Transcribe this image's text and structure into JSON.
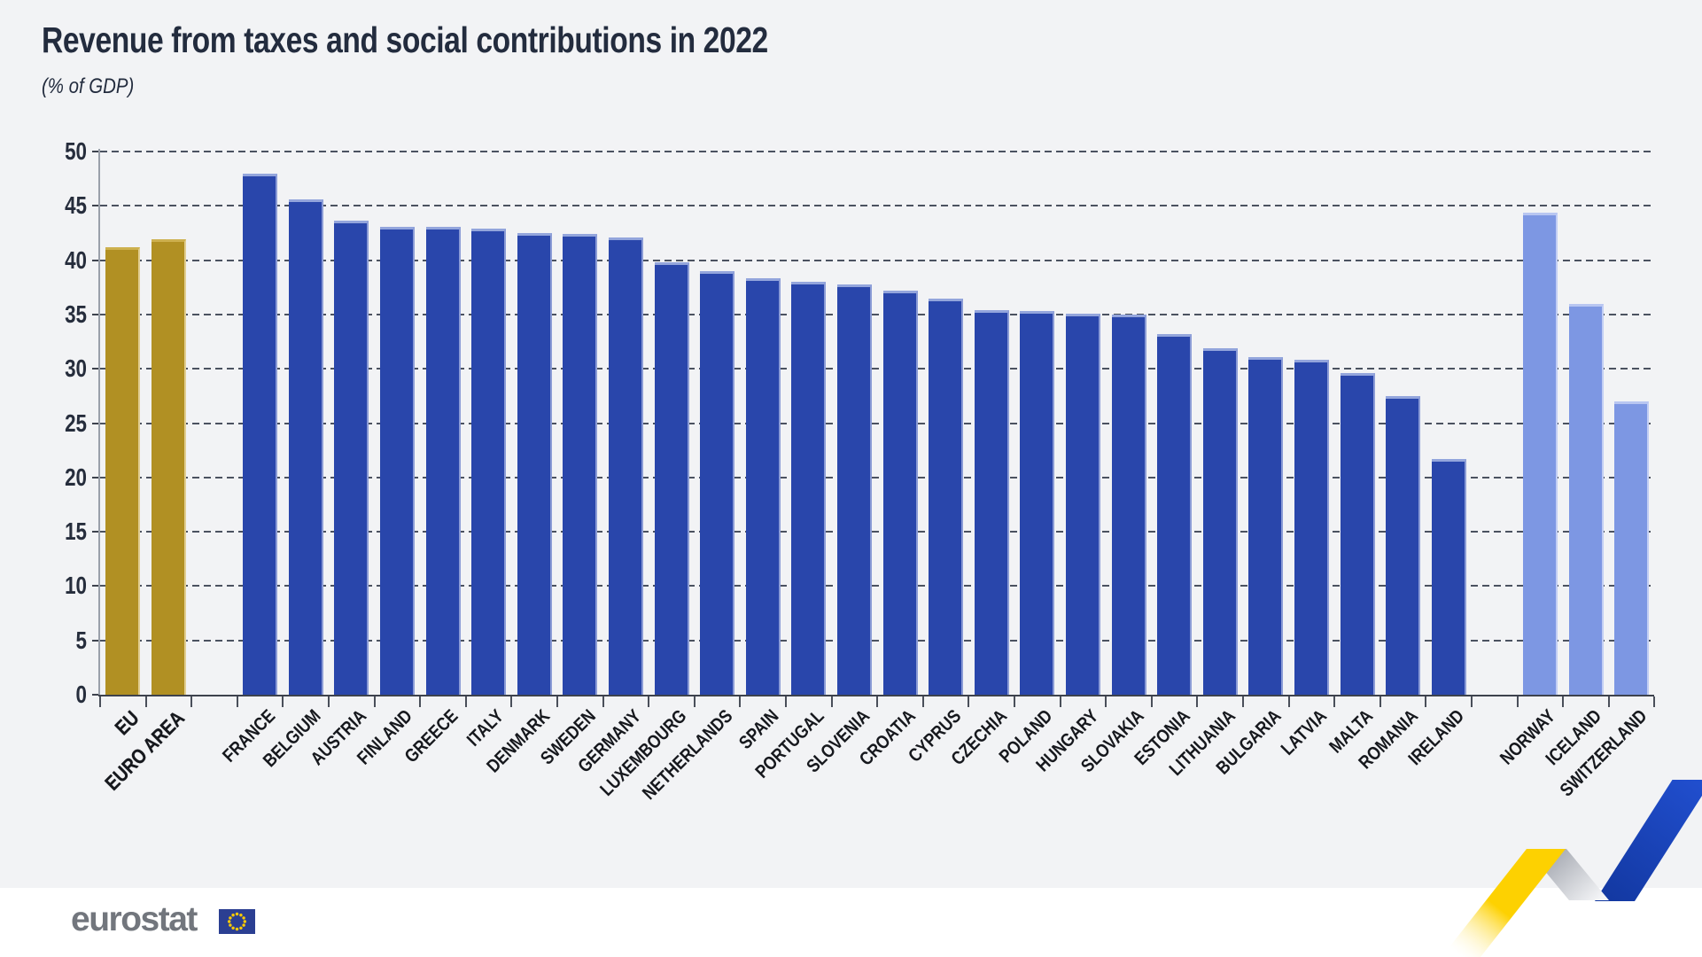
{
  "title": "Revenue from taxes and social contributions in 2022",
  "subtitle": "(% of GDP)",
  "logo": {
    "text": "eurostat"
  },
  "colors": {
    "background": "#f2f3f5",
    "footer": "#ffffff",
    "title_text": "#232c3e",
    "gridline": "#4b5260",
    "axis_line": "#3d424d",
    "eu_aggregate_bar": "#b19023",
    "eu_member_bar": "#2946ab",
    "efta_bar": "#7d97e3",
    "logo_gray": "#72767d",
    "flag_blue": "#2b3f92",
    "flag_star_yellow": "#ffcc00",
    "ribbon_yellow": "#fdd101",
    "ribbon_blue": "#1c4ed8",
    "ribbon_gray": "#9fa3ac"
  },
  "chart_data": {
    "type": "bar",
    "title": "Revenue from taxes and social contributions in 2022",
    "subtitle": "(% of GDP)",
    "ylabel": "% of GDP",
    "ylim": [
      0,
      50
    ],
    "y_ticks": [
      0,
      5,
      10,
      15,
      20,
      25,
      30,
      35,
      40,
      45,
      50
    ],
    "grid": "dashed horizontal",
    "legend": "none",
    "gaps_after": [
      "EURO AREA",
      "IRELAND"
    ],
    "groups": {
      "eu_aggregate": {
        "fill": "#b19023",
        "cap": "#cdb04e",
        "edge": "rgba(250,240,205,0.65)"
      },
      "eu_member": {
        "fill": "#2946ab",
        "cap": "#93a5dc",
        "edge": "rgba(220,228,250,0.55)"
      },
      "efta": {
        "fill": "#7d97e3",
        "cap": "#b8c6f1",
        "edge": "rgba(240,244,255,0.6)"
      }
    },
    "series": [
      {
        "label": "EU",
        "value": 41.2,
        "group": "eu_aggregate"
      },
      {
        "label": "EURO AREA",
        "value": 41.9,
        "group": "eu_aggregate"
      },
      {
        "label": "FRANCE",
        "value": 48.0,
        "group": "eu_member"
      },
      {
        "label": "BELGIUM",
        "value": 45.6,
        "group": "eu_member"
      },
      {
        "label": "AUSTRIA",
        "value": 43.6,
        "group": "eu_member"
      },
      {
        "label": "FINLAND",
        "value": 43.1,
        "group": "eu_member"
      },
      {
        "label": "GREECE",
        "value": 43.1,
        "group": "eu_member"
      },
      {
        "label": "ITALY",
        "value": 42.9,
        "group": "eu_member"
      },
      {
        "label": "DENMARK",
        "value": 42.5,
        "group": "eu_member"
      },
      {
        "label": "SWEDEN",
        "value": 42.4,
        "group": "eu_member"
      },
      {
        "label": "GERMANY",
        "value": 42.1,
        "group": "eu_member"
      },
      {
        "label": "LUXEMBOURG",
        "value": 39.8,
        "group": "eu_member"
      },
      {
        "label": "NETHERLANDS",
        "value": 39.0,
        "group": "eu_member"
      },
      {
        "label": "SPAIN",
        "value": 38.3,
        "group": "eu_member"
      },
      {
        "label": "PORTUGAL",
        "value": 38.0,
        "group": "eu_member"
      },
      {
        "label": "SLOVENIA",
        "value": 37.8,
        "group": "eu_member"
      },
      {
        "label": "CROATIA",
        "value": 37.2,
        "group": "eu_member"
      },
      {
        "label": "CYPRUS",
        "value": 36.5,
        "group": "eu_member"
      },
      {
        "label": "CZECHIA",
        "value": 35.4,
        "group": "eu_member"
      },
      {
        "label": "POLAND",
        "value": 35.3,
        "group": "eu_member"
      },
      {
        "label": "HUNGARY",
        "value": 35.1,
        "group": "eu_member"
      },
      {
        "label": "SLOVAKIA",
        "value": 35.0,
        "group": "eu_member"
      },
      {
        "label": "ESTONIA",
        "value": 33.2,
        "group": "eu_member"
      },
      {
        "label": "LITHUANIA",
        "value": 31.9,
        "group": "eu_member"
      },
      {
        "label": "BULGARIA",
        "value": 31.1,
        "group": "eu_member"
      },
      {
        "label": "LATVIA",
        "value": 30.8,
        "group": "eu_member"
      },
      {
        "label": "MALTA",
        "value": 29.6,
        "group": "eu_member"
      },
      {
        "label": "ROMANIA",
        "value": 27.5,
        "group": "eu_member"
      },
      {
        "label": "IRELAND",
        "value": 21.7,
        "group": "eu_member"
      },
      {
        "label": "NORWAY",
        "value": 44.4,
        "group": "efta"
      },
      {
        "label": "ICELAND",
        "value": 36.0,
        "group": "efta"
      },
      {
        "label": "SWITZERLAND",
        "value": 27.0,
        "group": "efta"
      }
    ]
  }
}
